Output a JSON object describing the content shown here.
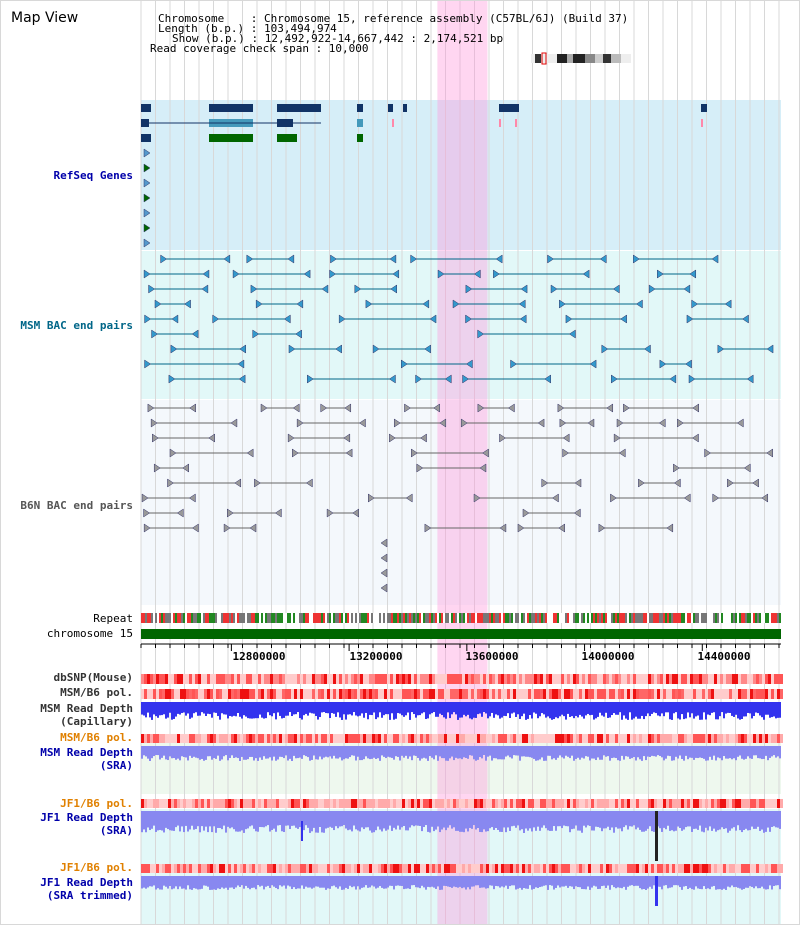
{
  "view": {
    "title": "Map View",
    "info_lines": [
      "Chromosome    : Chromosome 15, reference assembly (C57BL/6J) (Build 37)",
      "Length (b.p.) : 103,494,974",
      "Show (b.p.) : 12,492,922-14,667,442 : 2,174,521 bp",
      "Read coverage check span : 10,000"
    ]
  },
  "tracks": {
    "refseq": {
      "label": "RefSeq Genes",
      "color": "#0000aa"
    },
    "msm_bac": {
      "label": "MSM BAC end pairs",
      "color": "#006688"
    },
    "b6n_bac": {
      "label": "B6N BAC end pairs",
      "color": "#555555"
    },
    "repeat": {
      "label": "Repeat"
    },
    "chromosome": {
      "label": "chromosome 15"
    },
    "dbsnp": {
      "label": "dbSNP(Mouse)"
    },
    "msm_b6_pol": {
      "label": "MSM/B6 pol."
    },
    "msm_depth_cap": {
      "label_1": "MSM Read Depth",
      "label_2": "(Capillary)"
    },
    "msm_b6_pol_2": {
      "label": "MSM/B6 pol.",
      "color": "#e08000"
    },
    "msm_depth_sra": {
      "label_1": "MSM Read Depth",
      "label_2": "(SRA)",
      "color": "#0000aa"
    },
    "jf1_pol": {
      "label": "JF1/B6 pol.",
      "color": "#e08000"
    },
    "jf1_depth": {
      "label_1": "JF1 Read Depth",
      "label_2": "(SRA)",
      "color": "#0000aa"
    },
    "jf1_pol_2": {
      "label": "JF1/B6 pol.",
      "color": "#e08000"
    },
    "jf1_depth_trim": {
      "label_1": "JF1 Read Depth",
      "label_2": "(SRA trimmed)",
      "color": "#0000aa"
    }
  },
  "axis": {
    "tick_labels": [
      "12800000",
      "13200000",
      "13600000",
      "14000000",
      "14400000"
    ],
    "tick_values": [
      12800000,
      13200000,
      13600000,
      14000000,
      14400000
    ],
    "range_start": 12492922,
    "range_end": 14667442
  },
  "highlight_region": {
    "start": 13500000,
    "end": 13670000,
    "color": "#ff99dd"
  },
  "colors": {
    "refseq_bg": "#d6eef8",
    "msm_bg": "#e2f8f8",
    "b6n_bg": "#f4f8fc",
    "chromosome_bar": "#006600",
    "depth_blue": "#3333ee",
    "depth_light": "#8888f0",
    "pol_red": "#ff4444",
    "highlight": "#ff99dd"
  }
}
